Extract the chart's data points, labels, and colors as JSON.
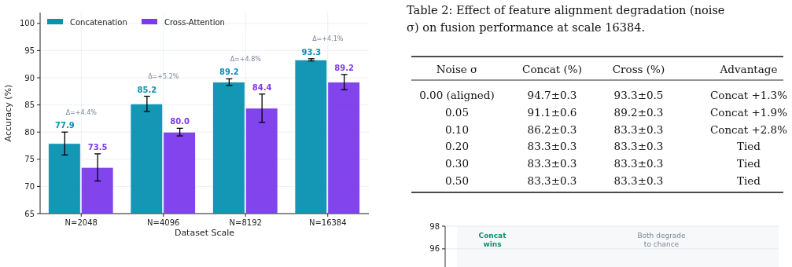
{
  "chart_data": [
    {
      "type": "bar",
      "xlabel": "Dataset Scale",
      "ylabel": "Accuracy (%)",
      "categories": [
        "N=2048",
        "N=4096",
        "N=8192",
        "N=16384"
      ],
      "series": [
        {
          "name": "Concatenation",
          "color": "#0891b2",
          "values": [
            77.9,
            85.2,
            89.2,
            93.3
          ],
          "errors": [
            2.1,
            1.4,
            0.6,
            0.2
          ],
          "value_labels": [
            "77.9",
            "85.2",
            "89.2",
            "93.3"
          ]
        },
        {
          "name": "Cross-Attention",
          "color": "#7c3aed",
          "values": [
            73.5,
            80.0,
            84.4,
            89.2
          ],
          "errors": [
            2.5,
            0.7,
            2.6,
            1.4
          ],
          "value_labels": [
            "73.5",
            "80.0",
            "84.4",
            "89.2"
          ]
        }
      ],
      "ylim": [
        65,
        102
      ],
      "yticks": [
        65,
        70,
        75,
        80,
        85,
        90,
        95,
        100
      ],
      "grid": true,
      "legend": "top left",
      "annotations": [
        "Δ=+4.4%",
        "Δ=+5.2%",
        "Δ=+4.8%",
        "Δ=+4.1%"
      ]
    },
    {
      "type": "other",
      "title": "Table 2: Effect of feature alignment degradation (noise σ) on fusion performance at scale 16384.",
      "categories": [
        "Noise σ",
        "Concat (%)",
        "Cross (%)",
        "Advantage"
      ],
      "y_categories": [
        "0.00 (aligned)",
        "0.05",
        "0.10",
        "0.20",
        "0.30",
        "0.50"
      ],
      "cell_labels": [
        [
          "94.7±0.3",
          "93.3±0.5",
          "Concat +1.3%"
        ],
        [
          "91.1±0.6",
          "89.2±0.3",
          "Concat +1.9%"
        ],
        [
          "86.2±0.3",
          "83.3±0.3",
          "Concat +2.8%"
        ],
        [
          "83.3±0.3",
          "83.3±0.3",
          "Tied"
        ],
        [
          "83.3±0.3",
          "83.3±0.3",
          "Tied"
        ],
        [
          "83.3±0.3",
          "83.3±0.3",
          "Tied"
        ]
      ]
    },
    {
      "type": "line",
      "categories": [
        null
      ],
      "ylim": [
        94.4,
        98
      ],
      "yticks": [
        96,
        98
      ],
      "grid": "y",
      "annotations": [
        "Concat wins",
        "Both degrade to chance"
      ]
    }
  ]
}
